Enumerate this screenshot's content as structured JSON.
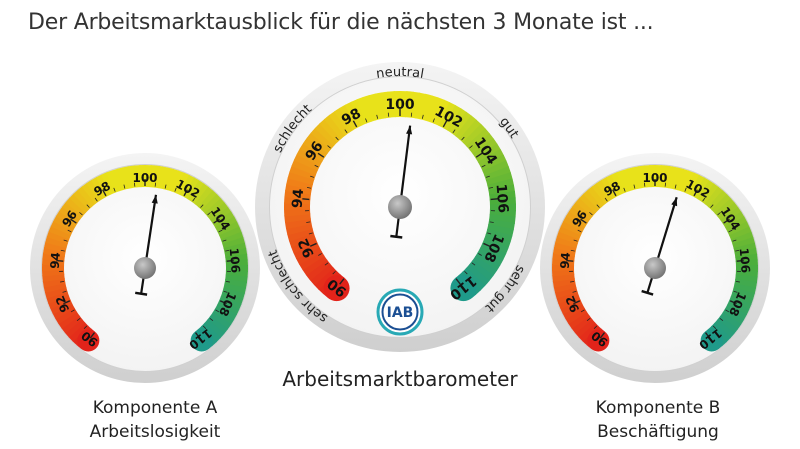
{
  "title": "Der Arbeitsmarktausblick für die nächsten 3 Monate ist ...",
  "center_caption": "Arbeitsmarktbarometer",
  "logo_text": "IAB",
  "colors": {
    "red": "#e2231a",
    "orange": "#f07d18",
    "yellow": "#e8e21a",
    "green": "#4caf3a",
    "teal": "#1f9a8a",
    "needle": "#111111",
    "hub": "#8c8c8c",
    "bezel": "#e4e4e4",
    "logo_blue": "#1b4f93"
  },
  "chart_data": [
    {
      "type": "gauge",
      "id": "komponente-a",
      "caption_line1": "Komponente A",
      "caption_line2": "Arbeitslosigkeit",
      "min": 90,
      "max": 110,
      "ticks": [
        "90",
        "92",
        "94",
        "96",
        "98",
        "100",
        "102",
        "104",
        "106",
        "108",
        "110"
      ],
      "value": 100.6
    },
    {
      "type": "gauge",
      "id": "barometer",
      "caption_line1": "",
      "caption_line2": "",
      "min": 90,
      "max": 110,
      "ticks": [
        "90",
        "92",
        "94",
        "96",
        "98",
        "100",
        "102",
        "104",
        "106",
        "108",
        "110"
      ],
      "value": 100.5,
      "zone_labels": {
        "very_bad": "sehr schlecht",
        "bad": "schlecht",
        "neutral": "neutral",
        "good": "gut",
        "very_good": "sehr gut"
      }
    },
    {
      "type": "gauge",
      "id": "komponente-b",
      "caption_line1": "Komponente B",
      "caption_line2": "Beschäftigung",
      "min": 90,
      "max": 110,
      "ticks": [
        "90",
        "92",
        "94",
        "96",
        "98",
        "100",
        "102",
        "104",
        "106",
        "108",
        "110"
      ],
      "value": 101.2
    }
  ]
}
